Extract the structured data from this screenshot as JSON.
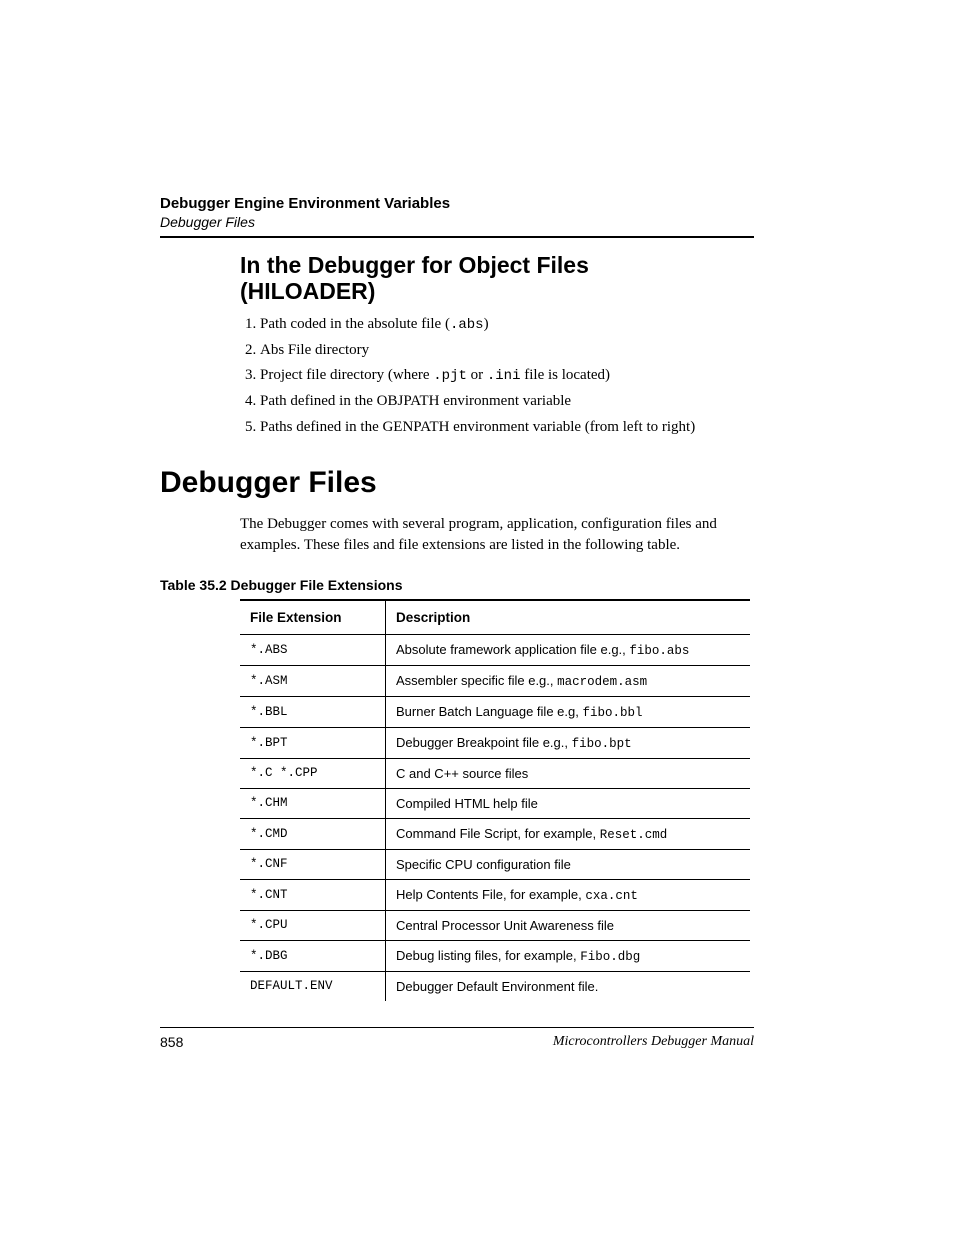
{
  "header": {
    "bold_line": "Debugger Engine Environment Variables",
    "italic_line": "Debugger Files"
  },
  "section1": {
    "heading_line1": "In the Debugger for Object Files",
    "heading_line2": "(HILOADER)",
    "items": [
      {
        "pre": "Path coded in the absolute file (",
        "code": ".abs",
        "post": ")"
      },
      {
        "pre": "Abs File directory",
        "code": "",
        "post": ""
      },
      {
        "pre": "Project file directory (where ",
        "code": ".pjt",
        "mid": " or ",
        "code2": ".ini",
        "post": " file is located)"
      },
      {
        "pre": "Path defined in the OBJPATH environment variable",
        "code": "",
        "post": ""
      },
      {
        "pre": "Paths defined in the GENPATH environment variable (from left to right)",
        "code": "",
        "post": ""
      }
    ]
  },
  "main_heading": "Debugger Files",
  "intro_para": "The Debugger comes with several program, application, configuration files and examples. These files and file extensions are listed in the following table.",
  "table": {
    "caption": "Table 35.2  Debugger File Extensions",
    "col1_header": "File Extension",
    "col2_header": "Description",
    "rows": [
      {
        "ext": "*.ABS",
        "desc_pre": "Absolute framework application file e.g., ",
        "desc_code": "fibo.abs",
        "desc_post": ""
      },
      {
        "ext": "*.ASM",
        "desc_pre": "Assembler specific file e.g., ",
        "desc_code": "macrodem.asm",
        "desc_post": ""
      },
      {
        "ext": "*.BBL",
        "desc_pre": "Burner Batch Language file e.g, ",
        "desc_code": "fibo.bbl",
        "desc_post": ""
      },
      {
        "ext": "*.BPT",
        "desc_pre": "Debugger Breakpoint file e.g., ",
        "desc_code": "fibo.bpt",
        "desc_post": ""
      },
      {
        "ext": "*.C *.CPP",
        "desc_pre": "C and C++ source files",
        "desc_code": "",
        "desc_post": ""
      },
      {
        "ext": "*.CHM",
        "desc_pre": "Compiled HTML help file",
        "desc_code": "",
        "desc_post": ""
      },
      {
        "ext": "*.CMD",
        "desc_pre": "Command File Script, for example, ",
        "desc_code": "Reset.cmd",
        "desc_post": ""
      },
      {
        "ext": "*.CNF",
        "desc_pre": "Specific CPU configuration file",
        "desc_code": "",
        "desc_post": ""
      },
      {
        "ext": "*.CNT",
        "desc_pre": "Help Contents File, for example, ",
        "desc_code": "cxa.cnt",
        "desc_post": ""
      },
      {
        "ext": "*.CPU",
        "desc_pre": "Central Processor Unit Awareness file",
        "desc_code": "",
        "desc_post": ""
      },
      {
        "ext": "*.DBG",
        "desc_pre": "Debug listing files, for example, ",
        "desc_code": "Fibo.dbg",
        "desc_post": ""
      },
      {
        "ext": "DEFAULT.ENV",
        "desc_pre": "Debugger Default Environment file.",
        "desc_code": "",
        "desc_post": ""
      }
    ]
  },
  "footer": {
    "page_number": "858",
    "manual_title": "Microcontrollers Debugger Manual"
  }
}
